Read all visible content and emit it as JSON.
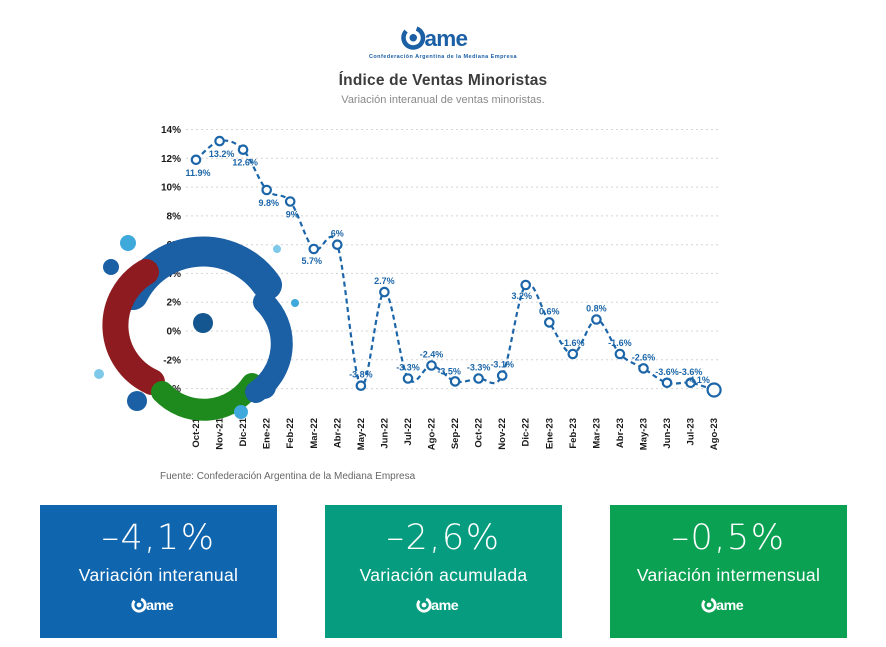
{
  "header": {
    "logo": {
      "wordmark": "ame",
      "tagline": "Confederación Argentina de la Mediana Empresa"
    },
    "title": "Índice de Ventas Minoristas",
    "subtitle": "Variación interanual de ventas minoristas."
  },
  "chart_data": {
    "type": "line",
    "title": "Índice de Ventas Minoristas",
    "subtitle": "Variación interanual de ventas minoristas.",
    "categories": [
      "Oct-21",
      "Nov-21",
      "Dic-21",
      "Ene-22",
      "Feb-22",
      "Mar-22",
      "Abr-22",
      "May-22",
      "Jun-22",
      "Jul-22",
      "Ago-22",
      "Sep-22",
      "Oct-22",
      "Nov-22",
      "Dic-22",
      "Ene-23",
      "Feb-23",
      "Mar-23",
      "Abr-23",
      "May-23",
      "Jun-23",
      "Jul-23",
      "Ago-23"
    ],
    "values": [
      11.9,
      13.2,
      12.6,
      9.8,
      9.0,
      5.7,
      6.0,
      -3.8,
      2.7,
      -3.3,
      -2.4,
      -3.5,
      -3.3,
      -3.1,
      3.2,
      0.6,
      -1.6,
      0.8,
      -1.6,
      -2.6,
      -3.6,
      -3.6,
      -4.1
    ],
    "labels": [
      "11.9%",
      "13.2%",
      "12.6%",
      "9.8%",
      "9%",
      "5.7%",
      "6%",
      "-3.8%",
      "2.7%",
      "-3.3%",
      "-2.4%",
      "-3.5%",
      "-3.3%",
      "-3.1%",
      "3.2%",
      "0.6%",
      "-1.6%",
      "0.8%",
      "-1.6%",
      "-2.6%",
      "-3.6%",
      "-3.6%",
      "-4.1%"
    ],
    "ylim": [
      -4,
      14
    ],
    "yticks": [
      14,
      12,
      10,
      8,
      6,
      4,
      2,
      0,
      -2,
      -4
    ],
    "ytick_labels": [
      "14%",
      "12%",
      "10%",
      "8%",
      "6%",
      "4%",
      "2%",
      "0%",
      "-2%",
      "-4%"
    ],
    "grid": "horizontal-dashed",
    "legend": "none",
    "line_color": "#1B65A8",
    "line_style": "dashed",
    "marker": "open-circle"
  },
  "source": "Fuente: Confederación Argentina de la Mediana Empresa",
  "cards": [
    {
      "value": "–4,1%",
      "label": "Variación interanual",
      "color": "#1066AE"
    },
    {
      "value": "–2,6%",
      "label": "Variación acumulada",
      "color": "#069C7F"
    },
    {
      "value": "–0,5%",
      "label": "Variación intermensual",
      "color": "#0AA153"
    }
  ],
  "watermark": {
    "icon": "came-spiral-logo",
    "colors": {
      "blue": "#1B5FA5",
      "dark_blue": "#14568F",
      "light_blue": "#3FA9DC",
      "pale_blue": "#7EC8EA",
      "red": "#8D1B20",
      "green": "#1E8A1E"
    }
  }
}
